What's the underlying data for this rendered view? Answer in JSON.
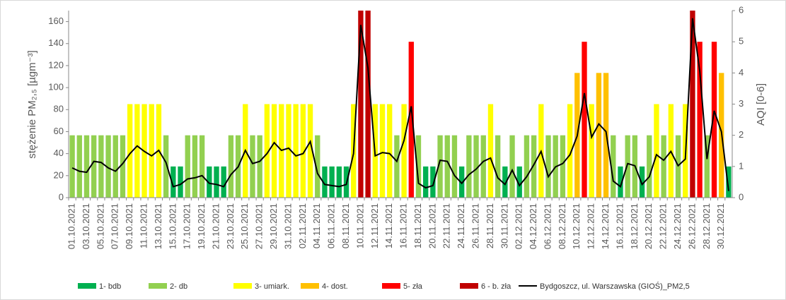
{
  "chart_data": {
    "type": "bar_line",
    "y_label": "stężenie PM₂,₅ [µgm⁻³]",
    "y2_label": "AQI [0-6]",
    "ylim": [
      0,
      170
    ],
    "yticks": [
      0,
      20,
      40,
      60,
      80,
      100,
      120,
      140,
      160
    ],
    "y2lim": [
      0,
      6
    ],
    "y2ticks": [
      0,
      1,
      2,
      3,
      4,
      5,
      6
    ],
    "categories": [
      "01.10.2021",
      null,
      "03.10.2021",
      null,
      "05.10.2021",
      null,
      "07.10.2021",
      null,
      "09.10.2021",
      null,
      "11.10.2021",
      null,
      "13.10.2021",
      null,
      "15.10.2021",
      null,
      "17.10.2021",
      null,
      "19.10.2021",
      null,
      "21.10.2021",
      null,
      "23.10.2021",
      null,
      "25.10.2021",
      null,
      "27.10.2021",
      null,
      "29.10.2021",
      null,
      "31.10.2021",
      null,
      "02.11.2021",
      null,
      "04.11.2021",
      null,
      "06.11.2021",
      null,
      "08.11.2021",
      null,
      "10.11.2021",
      null,
      "12.11.2021",
      null,
      "14.11.2021",
      null,
      "16.11.2021",
      null,
      "18.11.2021",
      null,
      "20.11.2021",
      null,
      "22.11.2021",
      null,
      "24.11.2021",
      null,
      "26.11.2021",
      null,
      "28.11.2021",
      null,
      "30.11.2021",
      null,
      "02.12.2021",
      null,
      "04.12.2021",
      null,
      "06.12.2021",
      null,
      "08.12.2021",
      null,
      "10.12.2021",
      null,
      "12.12.2021",
      null,
      "14.12.2021",
      null,
      "16.12.2021",
      null,
      "18.12.2021",
      null,
      "20.12.2021",
      null,
      "22.12.2021",
      null,
      "24.12.2021",
      null,
      "26.12.2021",
      null,
      "28.12.2021",
      null,
      "30.12.2021",
      null
    ],
    "aqi_classes": [
      {
        "name": "1- bdb",
        "color": "#00b050"
      },
      {
        "name": "2- db",
        "color": "#92d050"
      },
      {
        "name": "3- umiark.",
        "color": "#ffff00"
      },
      {
        "name": "4- dost.",
        "color": "#ffc000"
      },
      {
        "name": "5- zła",
        "color": "#ff0000"
      },
      {
        "name": "6 - b. zła",
        "color": "#c00000"
      }
    ],
    "aqi": {
      "axis": "y2",
      "values": [
        2,
        2,
        2,
        2,
        2,
        2,
        2,
        2,
        3,
        3,
        3,
        3,
        3,
        2,
        1,
        1,
        2,
        2,
        2,
        1,
        1,
        1,
        2,
        2,
        3,
        2,
        2,
        3,
        3,
        3,
        3,
        3,
        3,
        3,
        2,
        1,
        1,
        1,
        1,
        3,
        6,
        6,
        3,
        3,
        3,
        2,
        3,
        5,
        2,
        1,
        1,
        2,
        2,
        2,
        1,
        2,
        2,
        2,
        3,
        2,
        1,
        2,
        1,
        2,
        2,
        3,
        2,
        2,
        2,
        3,
        4,
        5,
        3,
        4,
        4,
        2,
        1,
        2,
        2,
        1,
        2,
        3,
        2,
        3,
        2,
        3,
        6,
        5,
        2,
        5,
        4,
        1
      ]
    },
    "series": [
      {
        "name": "Bydgoszcz, ul. Warszawska (GIOŚ)_PM2,5",
        "color": "#000000",
        "axis": "y",
        "values": [
          27,
          24,
          23,
          33,
          32,
          27,
          24,
          31,
          40,
          47,
          42,
          38,
          43,
          32,
          10,
          12,
          17,
          18,
          20,
          13,
          12,
          10,
          21,
          28,
          43,
          31,
          33,
          40,
          50,
          43,
          45,
          38,
          40,
          51,
          22,
          12,
          11,
          10,
          12,
          40,
          157,
          118,
          38,
          41,
          40,
          33,
          52,
          83,
          13,
          9,
          11,
          34,
          33,
          20,
          13,
          21,
          26,
          33,
          36,
          18,
          12,
          25,
          11,
          19,
          30,
          42,
          19,
          28,
          31,
          39,
          56,
          95,
          55,
          67,
          60,
          15,
          10,
          31,
          29,
          12,
          19,
          39,
          34,
          42,
          29,
          35,
          163,
          115,
          35,
          79,
          60,
          6
        ]
      }
    ]
  }
}
